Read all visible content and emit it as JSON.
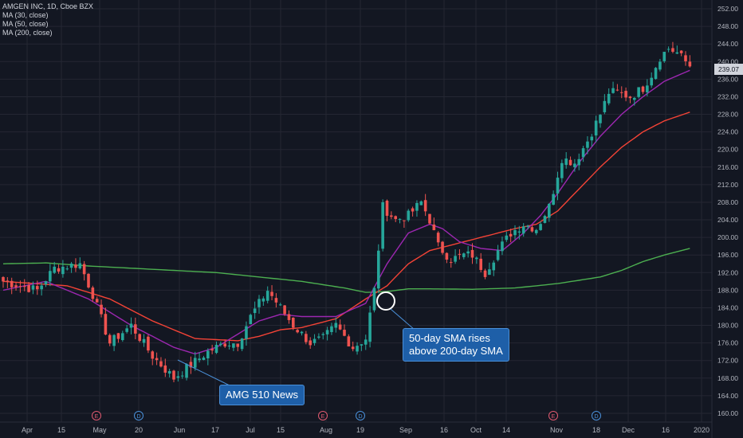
{
  "legend": {
    "title": "AMGEN INC, 1D, Cboe BZX",
    "ma30": "MA (30, close)",
    "ma50": "MA (50, close)",
    "ma200": "MA (200, close)"
  },
  "annotations": {
    "news": "AMG 510 News",
    "cross_line1": "50-day SMA rises",
    "cross_line2": "above 200-day SMA"
  },
  "last_price": "239.07",
  "colors": {
    "background": "#131722",
    "grid": "#242733",
    "up": "#26a69a",
    "down": "#ef5350",
    "ma30": "#9c27b0",
    "ma50": "#f44336",
    "ma200": "#4caf50",
    "axis_text": "#b2b5be"
  },
  "chart_data": {
    "type": "candlestick",
    "title": "AMGEN INC, 1D, Cboe BZX",
    "ylim": [
      158,
      254
    ],
    "y_ticks": [
      160,
      164,
      168,
      172,
      176,
      180,
      184,
      188,
      192,
      196,
      200,
      204,
      208,
      212,
      216,
      220,
      224,
      228,
      232,
      236,
      240,
      244,
      248,
      252
    ],
    "x_tick_labels": [
      "Apr",
      "15",
      "May",
      "20",
      "Jun",
      "17",
      "Jul",
      "15",
      "Aug",
      "19",
      "Sep",
      "16",
      "Oct",
      "14",
      "Nov",
      "18",
      "Dec",
      "16",
      "2020"
    ],
    "event_markers": [
      {
        "label": "E",
        "tick": "May"
      },
      {
        "label": "D",
        "tick": "20"
      },
      {
        "label": "E",
        "tick": "Aug"
      },
      {
        "label": "D",
        "tick": "19"
      },
      {
        "label": "E",
        "tick": "Nov"
      },
      {
        "label": "D",
        "tick": "18"
      }
    ],
    "close_keypoints": [
      [
        0,
        190
      ],
      [
        8,
        188
      ],
      [
        12,
        193
      ],
      [
        18,
        194
      ],
      [
        21,
        187
      ],
      [
        25,
        176
      ],
      [
        30,
        180
      ],
      [
        35,
        173
      ],
      [
        40,
        168
      ],
      [
        44,
        171
      ],
      [
        48,
        174
      ],
      [
        52,
        176
      ],
      [
        55,
        176
      ],
      [
        58,
        182
      ],
      [
        62,
        188
      ],
      [
        65,
        184
      ],
      [
        68,
        180
      ],
      [
        72,
        176
      ],
      [
        75,
        177
      ],
      [
        78,
        180
      ],
      [
        82,
        175
      ],
      [
        85,
        177
      ],
      [
        87,
        188
      ],
      [
        89,
        207
      ],
      [
        92,
        204
      ],
      [
        95,
        205
      ],
      [
        98,
        208
      ],
      [
        100,
        204
      ],
      [
        102,
        198
      ],
      [
        105,
        195
      ],
      [
        108,
        196
      ],
      [
        110,
        196
      ],
      [
        113,
        192
      ],
      [
        116,
        197
      ],
      [
        119,
        201
      ],
      [
        122,
        203
      ],
      [
        125,
        202
      ],
      [
        128,
        207
      ],
      [
        131,
        218
      ],
      [
        134,
        217
      ],
      [
        137,
        222
      ],
      [
        140,
        228
      ],
      [
        142,
        233
      ],
      [
        144,
        233
      ],
      [
        147,
        232
      ],
      [
        150,
        234
      ],
      [
        152,
        237
      ],
      [
        154,
        241
      ],
      [
        156,
        243
      ],
      [
        158,
        242
      ],
      [
        160,
        240
      ],
      [
        161,
        239.07
      ]
    ],
    "series": [
      {
        "name": "MA (30, close)",
        "keypoints": [
          [
            0,
            188
          ],
          [
            10,
            190
          ],
          [
            20,
            186
          ],
          [
            30,
            180
          ],
          [
            40,
            175
          ],
          [
            45,
            173.5
          ],
          [
            50,
            175
          ],
          [
            55,
            178
          ],
          [
            60,
            181
          ],
          [
            65,
            182.5
          ],
          [
            70,
            182
          ],
          [
            78,
            182
          ],
          [
            85,
            185
          ],
          [
            90,
            194
          ],
          [
            95,
            201
          ],
          [
            100,
            203
          ],
          [
            103,
            202
          ],
          [
            107,
            199
          ],
          [
            112,
            197.5
          ],
          [
            117,
            197
          ],
          [
            122,
            201
          ],
          [
            126,
            205
          ],
          [
            130,
            210
          ],
          [
            135,
            217
          ],
          [
            140,
            223
          ],
          [
            145,
            228
          ],
          [
            150,
            232
          ],
          [
            155,
            235.5
          ],
          [
            161,
            238
          ]
        ]
      },
      {
        "name": "MA (50, close)",
        "keypoints": [
          [
            0,
            190
          ],
          [
            15,
            189
          ],
          [
            25,
            186
          ],
          [
            35,
            181
          ],
          [
            45,
            177
          ],
          [
            55,
            176.5
          ],
          [
            60,
            177.5
          ],
          [
            65,
            179
          ],
          [
            70,
            179.5
          ],
          [
            78,
            181.5
          ],
          [
            85,
            186
          ],
          [
            90,
            189
          ],
          [
            95,
            194
          ],
          [
            100,
            197
          ],
          [
            110,
            199.5
          ],
          [
            120,
            202
          ],
          [
            125,
            203
          ],
          [
            130,
            206
          ],
          [
            135,
            211
          ],
          [
            140,
            216
          ],
          [
            145,
            220.5
          ],
          [
            150,
            224
          ],
          [
            155,
            226.5
          ],
          [
            161,
            228.5
          ]
        ]
      },
      {
        "name": "MA (200, close)",
        "keypoints": [
          [
            0,
            194
          ],
          [
            10,
            194.2
          ],
          [
            20,
            193.5
          ],
          [
            30,
            193
          ],
          [
            40,
            192.5
          ],
          [
            50,
            192
          ],
          [
            60,
            191
          ],
          [
            70,
            190
          ],
          [
            80,
            188.5
          ],
          [
            85,
            187.5
          ],
          [
            90,
            187.7
          ],
          [
            95,
            188.3
          ],
          [
            100,
            188.3
          ],
          [
            110,
            188.2
          ],
          [
            120,
            188.5
          ],
          [
            130,
            189.5
          ],
          [
            140,
            191
          ],
          [
            145,
            192.5
          ],
          [
            150,
            194.5
          ],
          [
            155,
            196
          ],
          [
            161,
            197.5
          ]
        ]
      }
    ]
  }
}
